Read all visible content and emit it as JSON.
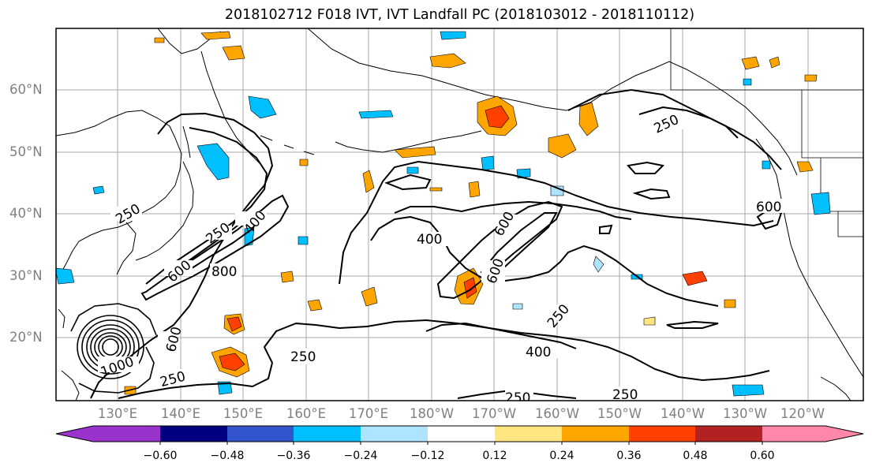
{
  "title": "2018102712 F018 IVT, IVT Landfall PC (2018103012 - 2018110112)",
  "lat_labels": [
    "60°N",
    "50°N",
    "40°N",
    "30°N",
    "20°N"
  ],
  "lon_labels": [
    "130°E",
    "140°E",
    "150°E",
    "160°E",
    "170°E",
    "180°W",
    "170°W",
    "160°W",
    "150°W",
    "140°W",
    "130°W",
    "120°W"
  ],
  "contour_labels": [
    "250",
    "250",
    "250",
    "250",
    "250",
    "250",
    "250",
    "250",
    "400",
    "400",
    "400",
    "600",
    "600",
    "600",
    "600",
    "800",
    "1000",
    "600"
  ],
  "colorbar": {
    "ticks": [
      "−0.60",
      "−0.48",
      "−0.36",
      "−0.24",
      "−0.12",
      "0.12",
      "0.24",
      "0.36",
      "0.48",
      "0.60"
    ],
    "colors": [
      "#9933cc",
      "#000080",
      "#3355cc",
      "#00bfff",
      "#aee4ff",
      "#ffffff",
      "#ffe680",
      "#ffa500",
      "#ff4000",
      "#b22222",
      "#ff88aa"
    ]
  }
}
